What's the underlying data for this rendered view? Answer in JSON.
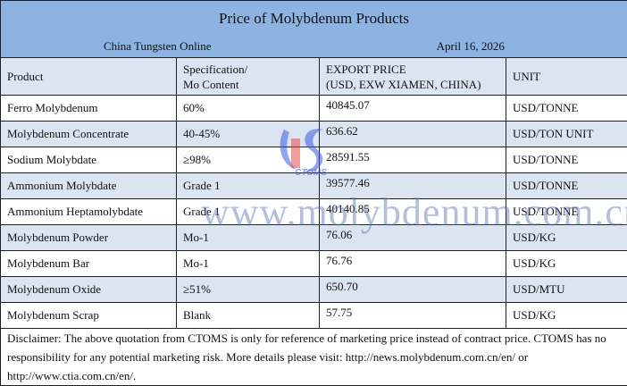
{
  "title": "Price of Molybdenum Products",
  "source": "China Tungsten Online",
  "date": "April 16, 2026",
  "headers": {
    "product": "Product",
    "spec_line1": "Specification/",
    "spec_line2": "Mo Content",
    "price_line1": "EXPORT PRICE",
    "price_line2": "(USD, EXW XIAMEN, CHINA)",
    "unit": "UNIT"
  },
  "rows": [
    {
      "product": "Ferro Molybdenum",
      "spec": "60%",
      "price": "40845.07",
      "unit": "USD/TONNE"
    },
    {
      "product": "Molybdenum Concentrate",
      "spec": "40-45%",
      "price": "636.62",
      "unit": "USD/TON UNIT"
    },
    {
      "product": "Sodium Molybdate",
      "spec": "≥98%",
      "price": "28591.55",
      "unit": "USD/TONNE"
    },
    {
      "product": "Ammonium Molybdate",
      "spec": "Grade 1",
      "price": "39577.46",
      "unit": "USD/TONNE"
    },
    {
      "product": "Ammonium Heptamolybdate",
      "spec": "Grade 1",
      "price": "40140.85",
      "unit": "USD/TONNE"
    },
    {
      "product": "Molybdenum Powder",
      "spec": "Mo-1",
      "price": "76.06",
      "unit": "USD/KG"
    },
    {
      "product": "Molybdenum Bar",
      "spec": "Mo-1",
      "price": "76.76",
      "unit": "USD/KG"
    },
    {
      "product": "Molybdenum Oxide",
      "spec": "≥51%",
      "price": "650.70",
      "unit": "USD/MTU"
    },
    {
      "product": "Molybdenum Scrap",
      "spec": "Blank",
      "price": "57.75",
      "unit": "USD/KG"
    }
  ],
  "disclaimer": "Disclaimer: The above quotation from CTOMS is only for reference of marketing price instead of contract price. CTOMS has no responsibility for any potential marketing risk. More details please visit: http://news.molybdenum.com.cn/en/ or http://www.ctia.com.cn/en/.",
  "watermark": "www.molybdenum.com.cn",
  "logo_text": "CTOMS",
  "colors": {
    "title_bg": "#8db3e2",
    "header_bg": "#dbe5f1"
  }
}
